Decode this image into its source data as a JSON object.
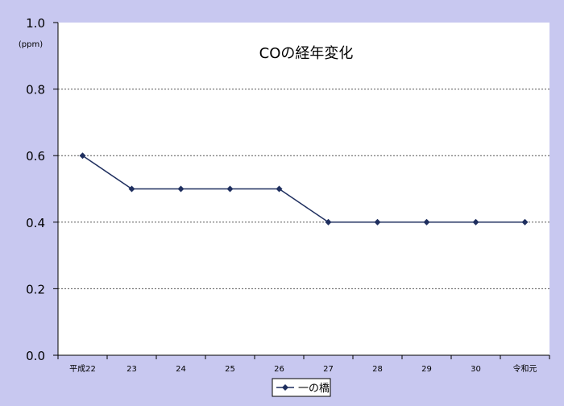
{
  "chart_data": {
    "type": "line",
    "title": "COの経年変化",
    "ylabel": "(ppm)",
    "xlabel": "",
    "categories": [
      "平成22",
      "23",
      "24",
      "25",
      "26",
      "27",
      "28",
      "29",
      "30",
      "令和元"
    ],
    "series": [
      {
        "name": "一の橋",
        "values": [
          0.6,
          0.5,
          0.5,
          0.5,
          0.5,
          0.4,
          0.4,
          0.4,
          0.4,
          0.4
        ]
      }
    ],
    "ylim": [
      0,
      1.0
    ],
    "yticks": [
      "0.0",
      "0.2",
      "0.4",
      "0.6",
      "0.8",
      "1.0"
    ],
    "grid": "horizontal-dotted",
    "legend_position": "bottom-center",
    "colors": {
      "background": "#c8c8f0",
      "plot_area": "#ffffff",
      "series": "#1f2f5f",
      "grid": "#555555",
      "text": "#000000"
    }
  }
}
